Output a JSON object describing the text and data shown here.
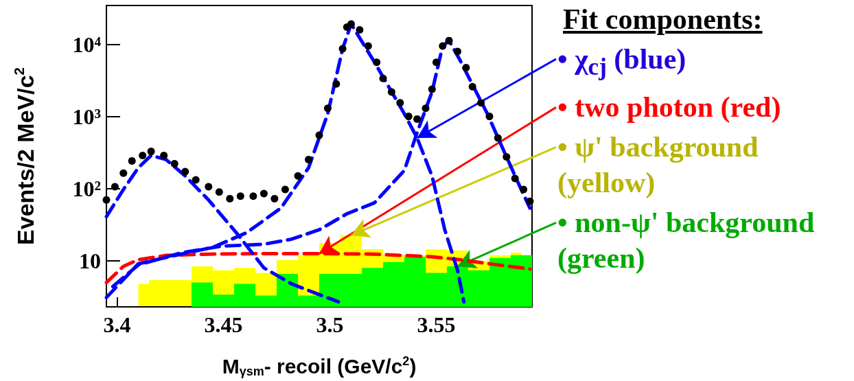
{
  "chart_data": {
    "type": "scatter",
    "xlabel": "M$_{γsm}$- recoil (GeV/c$^{2}$)",
    "ylabel": "Events/2 MeV/c$^{2}$",
    "xlim": [
      3.395,
      3.595
    ],
    "ylim": [
      2.3,
      35000
    ],
    "log": "y",
    "xticks": [
      3.4,
      3.45,
      3.5,
      3.55
    ],
    "yticks": [
      10,
      {
        "value": 100,
        "label": "10²"
      },
      {
        "value": 1000,
        "label": "10³"
      },
      {
        "value": 10000,
        "label": "10⁴"
      }
    ],
    "line_style": "dashed",
    "bins": [
      3.405,
      3.415,
      3.425,
      3.435,
      3.445,
      3.455,
      3.465,
      3.475,
      3.485,
      3.495,
      3.505,
      3.515,
      3.525,
      3.535,
      3.545,
      3.555,
      3.565,
      3.575,
      3.585,
      3.595
    ],
    "series": [
      {
        "type": "histogram",
        "color": "#00ff00",
        "values": [
          null,
          null,
          null,
          5.0,
          3.4,
          4.8,
          3.3,
          6.6,
          3.3,
          6.6,
          6.6,
          8.0,
          9.6,
          11.4,
          6.8,
          8.4,
          7.4,
          11,
          12
        ]
      },
      {
        "type": "area",
        "color": "#ffff00",
        "x": [
          3.41,
          3.42,
          3.43,
          3.44,
          3.45,
          3.46,
          3.47,
          3.48,
          3.49,
          3.5,
          3.51,
          3.52,
          3.53,
          3.54,
          3.55,
          3.56,
          3.57,
          3.58,
          3.59
        ],
        "values": [
          4.8,
          5.4,
          5.4,
          8.4,
          7.4,
          8.0,
          6.8,
          10.3,
          12,
          17.5,
          22.6,
          14.5,
          12,
          12,
          14.5,
          14,
          10,
          12,
          13
        ]
      },
      {
        "marker": "circle",
        "color": "#000000",
        "x": [
          3.395,
          3.399,
          3.403,
          3.407,
          3.412,
          3.416,
          3.422,
          3.427,
          3.432,
          3.437,
          3.443,
          3.448,
          3.453,
          3.458,
          3.464,
          3.469,
          3.474,
          3.479,
          3.485,
          3.49,
          3.495,
          3.499,
          3.503,
          3.506,
          3.508,
          3.51,
          3.514,
          3.518,
          3.522,
          3.525,
          3.529,
          3.533,
          3.537,
          3.541,
          3.545,
          3.548,
          3.55,
          3.553,
          3.556,
          3.56,
          3.564,
          3.567,
          3.571,
          3.575,
          3.579,
          3.583,
          3.587,
          3.591,
          3.594
        ],
        "values": [
          70,
          107,
          165,
          244,
          290,
          330,
          290,
          223,
          173,
          133,
          107,
          90,
          73,
          79,
          79,
          86,
          73,
          98,
          151,
          254,
          553,
          1310,
          2860,
          8790,
          17500,
          19400,
          16100,
          9570,
          5700,
          3400,
          2210,
          1560,
          1010,
          930,
          1310,
          2410,
          5700,
          9570,
          11400,
          8050,
          4800,
          2620,
          1560,
          1010,
          508,
          278,
          139,
          98,
          67
        ]
      },
      {
        "type": "line",
        "color": "#ff0000",
        "x": [
          3.395,
          3.403,
          3.41,
          3.423,
          3.443,
          3.469,
          3.495,
          3.521,
          3.548,
          3.561,
          3.574,
          3.594
        ],
        "values": [
          5.0,
          8.4,
          10.4,
          11.9,
          12.4,
          12.6,
          12.6,
          12.4,
          11.4,
          10.4,
          9.2,
          7.7
        ]
      },
      {
        "type": "line",
        "color": "#0000ff",
        "x": [
          3.395,
          3.403,
          3.41,
          3.416,
          3.423,
          3.432,
          3.443,
          3.456,
          3.469,
          3.482,
          3.495,
          3.504
        ],
        "values": [
          41,
          98,
          196,
          290,
          255,
          151,
          70,
          24.7,
          8.0,
          4.8,
          3.4,
          2.7
        ]
      },
      {
        "type": "line",
        "color": "#0000ff",
        "x": [
          3.395,
          3.41,
          3.43,
          3.445,
          3.461,
          3.477,
          3.49,
          3.499,
          3.506,
          3.51,
          3.521,
          3.535,
          3.541,
          3.548,
          3.554,
          3.56,
          3.563
        ],
        "values": [
          3.1,
          9.1,
          12.4,
          15.4,
          24.7,
          54,
          196,
          1100,
          8790,
          19400,
          5700,
          1100,
          508,
          151,
          27,
          7.4,
          2.7
        ]
      },
      {
        "type": "line",
        "color": "#0000ff",
        "x": [
          3.398,
          3.41,
          3.43,
          3.449,
          3.469,
          3.482,
          3.495,
          3.508,
          3.521,
          3.535,
          3.541,
          3.548,
          3.553,
          3.556,
          3.561,
          3.574,
          3.587,
          3.594
        ],
        "values": [
          4.4,
          8.8,
          12.9,
          16,
          17,
          20,
          27,
          45,
          64,
          180,
          604,
          2210,
          9570,
          11400,
          6220,
          1100,
          151,
          54
        ]
      }
    ],
    "annotations": [
      "Fit components:",
      {
        "text": "• χ$_{cj}$ (blue)",
        "x": 3.541,
        "y": 508
      },
      {
        "text": "• two photon (red)",
        "x": 3.495,
        "y": 12.6
      },
      {
        "text": "• ψ' background (yellow)",
        "x": 3.51,
        "y": 22.6
      },
      {
        "text": "• non-ψ' background (green)",
        "x": 3.56,
        "y": 8.4
      }
    ]
  }
}
